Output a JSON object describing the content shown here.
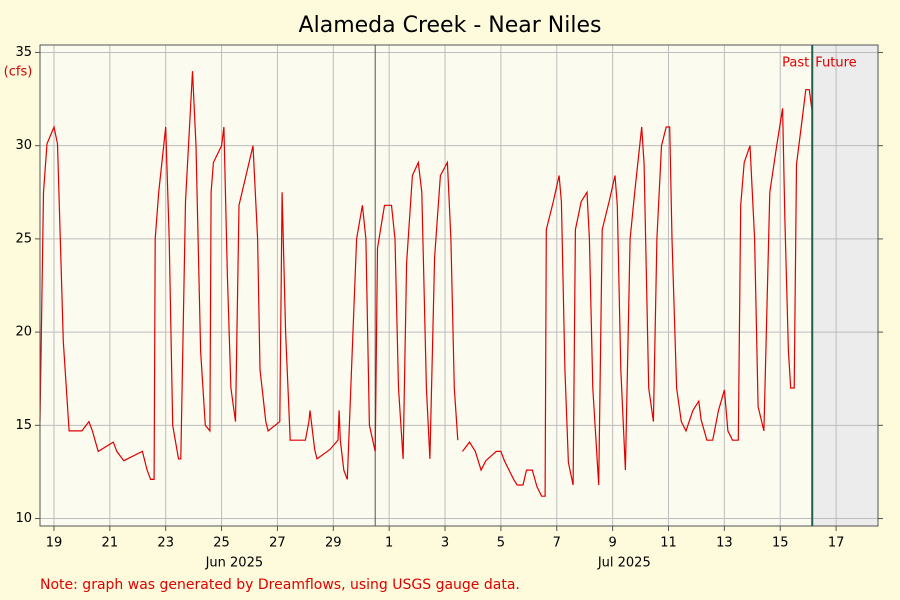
{
  "chart_data": {
    "type": "line",
    "title": "Alameda Creek - Near Niles",
    "y_label": "(cfs)",
    "note": "Note: graph was generated by Dreamflows, using USGS gauge data.",
    "color": "#e00000",
    "xlim": [
      "2025-06-19T00:00",
      "2025-07-19T00:00"
    ],
    "ylim": [
      9.6,
      35.4
    ],
    "yticks": [
      10,
      15,
      20,
      25,
      30,
      35
    ],
    "grid": true,
    "xticks": [
      {
        "value": "2025-06-19T12:00",
        "label": "19"
      },
      {
        "value": "2025-06-21T12:00",
        "label": "21"
      },
      {
        "value": "2025-06-23T12:00",
        "label": "23"
      },
      {
        "value": "2025-06-25T12:00",
        "label": "25"
      },
      {
        "value": "2025-06-27T12:00",
        "label": "27"
      },
      {
        "value": "2025-06-29T12:00",
        "label": "29"
      },
      {
        "value": "2025-07-01T12:00",
        "label": "1"
      },
      {
        "value": "2025-07-03T12:00",
        "label": "3"
      },
      {
        "value": "2025-07-05T12:00",
        "label": "5"
      },
      {
        "value": "2025-07-07T12:00",
        "label": "7"
      },
      {
        "value": "2025-07-09T12:00",
        "label": "9"
      },
      {
        "value": "2025-07-11T12:00",
        "label": "11"
      },
      {
        "value": "2025-07-13T12:00",
        "label": "13"
      },
      {
        "value": "2025-07-15T12:00",
        "label": "15"
      },
      {
        "value": "2025-07-17T12:00",
        "label": "17"
      }
    ],
    "month_ticks": [
      {
        "value": "2025-06-25T23:00",
        "label": "Jun 2025"
      },
      {
        "value": "2025-07-09T22:00",
        "label": "Jul 2025"
      }
    ],
    "month_line": "2025-07-01T00:00",
    "now": {
      "value": "2025-07-16T15:30",
      "past_label": "Past",
      "future_label": "Future"
    },
    "x": [
      "2025-06-19T00:00",
      "2025-06-19T03:00",
      "2025-06-19T06:00",
      "2025-06-19T12:00",
      "2025-06-19T15:00",
      "2025-06-19T20:00",
      "2025-06-20T01:00",
      "2025-06-20T12:00",
      "2025-06-20T18:00",
      "2025-06-20T21:00",
      "2025-06-21T02:00",
      "2025-06-21T15:00",
      "2025-06-21T18:00",
      "2025-06-22T00:00",
      "2025-06-22T16:00",
      "2025-06-22T20:00",
      "2025-06-22T23:00",
      "2025-06-23T02:00",
      "2025-06-23T03:00",
      "2025-06-23T06:00",
      "2025-06-23T12:00",
      "2025-06-23T15:00",
      "2025-06-23T18:00",
      "2025-06-23T23:00",
      "2025-06-24T01:00",
      "2025-06-24T05:00",
      "2025-06-24T11:00",
      "2025-06-24T14:00",
      "2025-06-24T18:00",
      "2025-06-24T22:00",
      "2025-06-25T02:00",
      "2025-06-25T03:00",
      "2025-06-25T05:00",
      "2025-06-25T12:00",
      "2025-06-25T14:00",
      "2025-06-25T17:00",
      "2025-06-25T20:00",
      "2025-06-26T00:00",
      "2025-06-26T03:00",
      "2025-06-26T09:00",
      "2025-06-26T15:00",
      "2025-06-26T19:00",
      "2025-06-26T21:00",
      "2025-06-27T02:00",
      "2025-06-27T04:00",
      "2025-06-27T14:00",
      "2025-06-27T16:00",
      "2025-06-27T19:00",
      "2025-06-27T23:00",
      "2025-06-28T12:00",
      "2025-06-28T15:00",
      "2025-06-28T16:00",
      "2025-06-28T20:00",
      "2025-06-28T22:00",
      "2025-06-29T09:00",
      "2025-06-29T16:00",
      "2025-06-29T17:00",
      "2025-06-29T18:00",
      "2025-06-29T21:00",
      "2025-06-30T00:00",
      "2025-06-30T03:00",
      "2025-06-30T08:00",
      "2025-06-30T13:00",
      "2025-06-30T16:00",
      "2025-06-30T19:00",
      "2025-07-01T00:00",
      "2025-07-01T02:00",
      "2025-07-01T08:00",
      "2025-07-01T14:00",
      "2025-07-01T17:00",
      "2025-07-01T20:00",
      "2025-07-02T00:00",
      "2025-07-02T03:00",
      "2025-07-02T08:00",
      "2025-07-02T13:00",
      "2025-07-02T16:00",
      "2025-07-02T20:00",
      "2025-07-02T23:00",
      "2025-07-03T03:00",
      "2025-07-03T08:00",
      "2025-07-03T14:00",
      "2025-07-03T17:00",
      "2025-07-03T20:00",
      "2025-07-03T23:00",
      "2025-07-04T01:00",
      "2025-07-04T03:00",
      "2025-07-04T09:00",
      "2025-07-04T14:00",
      "2025-07-04T19:00",
      "2025-07-04T23:00",
      "2025-07-05T08:00",
      "2025-07-05T12:00",
      "2025-07-05T15:00",
      "2025-07-05T19:00",
      "2025-07-05T23:00",
      "2025-07-06T02:00",
      "2025-07-06T07:00",
      "2025-07-06T10:00",
      "2025-07-06T15:00",
      "2025-07-06T19:00",
      "2025-07-06T23:00",
      "2025-07-07T02:00",
      "2025-07-07T03:00",
      "2025-07-07T09:00",
      "2025-07-07T14:00",
      "2025-07-07T16:00",
      "2025-07-07T19:00",
      "2025-07-07T22:00",
      "2025-07-08T02:00",
      "2025-07-08T04:00",
      "2025-07-08T09:00",
      "2025-07-08T14:00",
      "2025-07-08T16:00",
      "2025-07-08T19:00",
      "2025-07-09T00:00",
      "2025-07-09T03:00",
      "2025-07-09T09:00",
      "2025-07-09T14:00",
      "2025-07-09T16:00",
      "2025-07-09T19:00",
      "2025-07-09T23:00",
      "2025-07-10T03:00",
      "2025-07-10T07:00",
      "2025-07-10T13:00",
      "2025-07-10T15:00",
      "2025-07-10T19:00",
      "2025-07-10T23:00",
      "2025-07-11T02:00",
      "2025-07-11T06:00",
      "2025-07-11T10:00",
      "2025-07-11T13:00",
      "2025-07-11T15:00",
      "2025-07-11T19:00",
      "2025-07-11T23:00",
      "2025-07-12T03:00",
      "2025-07-12T09:00",
      "2025-07-12T14:00",
      "2025-07-12T16:00",
      "2025-07-12T21:00",
      "2025-07-13T02:00",
      "2025-07-13T07:00",
      "2025-07-13T12:00",
      "2025-07-13T15:00",
      "2025-07-13T19:00",
      "2025-07-14T00:00",
      "2025-07-14T02:00",
      "2025-07-14T05:00",
      "2025-07-14T10:00",
      "2025-07-14T14:00",
      "2025-07-14T17:00",
      "2025-07-14T22:00",
      "2025-07-15T03:00",
      "2025-07-15T09:00",
      "2025-07-15T14:00",
      "2025-07-15T16:00",
      "2025-07-15T19:00",
      "2025-07-15T21:00",
      "2025-07-16T00:00",
      "2025-07-16T02:00",
      "2025-07-16T06:00",
      "2025-07-16T10:00",
      "2025-07-16T13:00",
      "2025-07-16T15:00"
    ],
    "values": [
      15.2,
      27.5,
      30.1,
      31,
      30.1,
      19.5,
      14.7,
      14.7,
      15.2,
      14.7,
      13.6,
      14.1,
      13.6,
      13.1,
      13.6,
      12.6,
      12.1,
      12.1,
      25,
      27.5,
      31,
      25,
      15,
      13.2,
      13.2,
      27,
      34,
      30,
      19,
      15,
      14.7,
      27.5,
      29.1,
      30,
      31,
      23,
      17,
      15.2,
      26.8,
      28.4,
      30,
      25,
      18,
      15.2,
      14.7,
      15.2,
      27.5,
      20,
      14.2,
      14.2,
      15.2,
      15.8,
      13.7,
      13.2,
      13.7,
      14.2,
      15.8,
      14.2,
      12.6,
      12.1,
      17,
      25,
      26.8,
      25,
      15,
      13.6,
      24.5,
      26.8,
      26.8,
      25,
      17,
      13.2,
      23.7,
      28.4,
      29.1,
      27.5,
      17,
      13.2,
      24,
      28.4,
      29.1,
      25,
      17,
      14.2,
      null,
      13.6,
      14.1,
      13.6,
      12.6,
      13.1,
      13.6,
      13.6,
      13.1,
      12.6,
      12.1,
      11.8,
      11.8,
      12.6,
      12.6,
      11.7,
      11.2,
      11.2,
      25.5,
      27,
      28.4,
      27,
      18,
      13,
      11.8,
      25.5,
      27,
      27.5,
      25,
      17,
      11.8,
      25.5,
      27,
      28.4,
      26.8,
      18,
      12.6,
      25,
      27.5,
      31,
      29,
      17,
      15.2,
      25,
      30,
      31,
      31,
      25,
      17,
      15.2,
      14.7,
      15.8,
      16.3,
      15.3,
      14.2,
      14.2,
      15.8,
      16.9,
      14.7,
      14.2,
      14.2,
      26.8,
      29.1,
      30,
      25,
      16,
      14.7,
      27.5,
      30,
      32,
      26,
      19,
      17,
      17,
      29,
      31,
      33,
      33,
      32
    ]
  }
}
